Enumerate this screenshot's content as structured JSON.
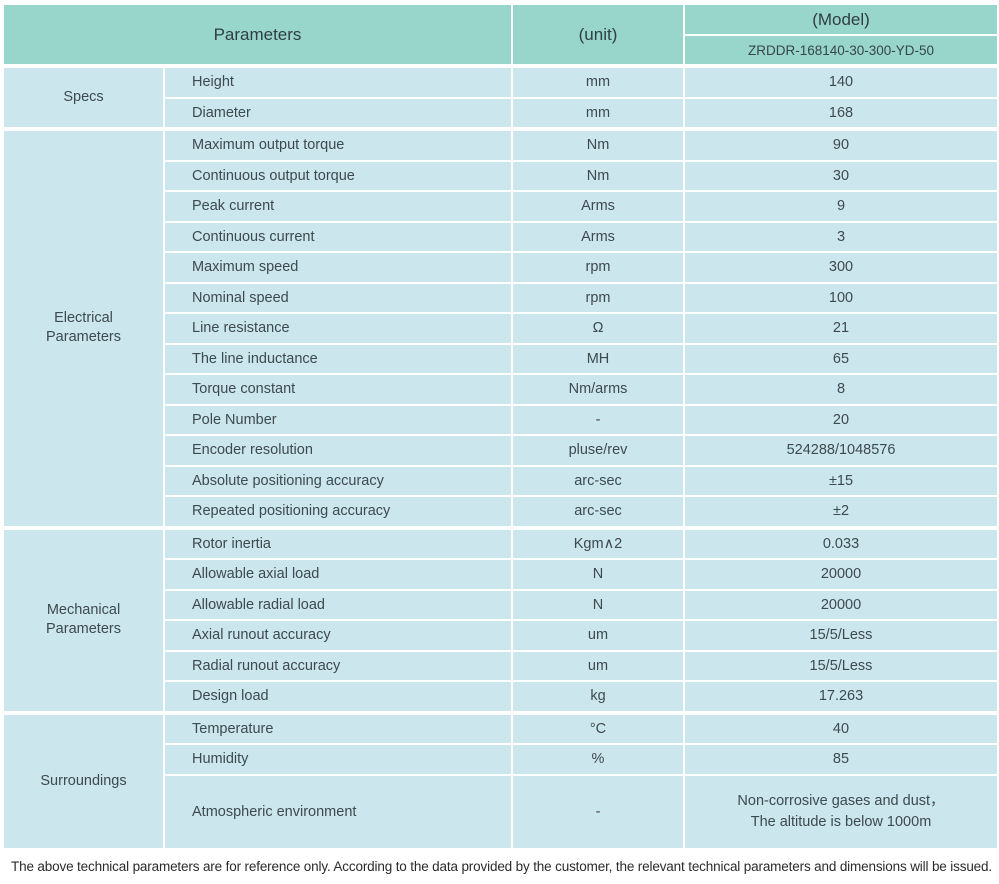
{
  "table": {
    "header": {
      "parameters_label": "Parameters",
      "unit_label": "(unit)",
      "model_label": "(Model)",
      "model_value": "ZRDDR-168140-30-300-YD-50"
    },
    "groups": [
      {
        "name": "Specs",
        "rows": [
          {
            "param": "Height",
            "unit": "mm",
            "value": "140"
          },
          {
            "param": "Diameter",
            "unit": "mm",
            "value": "168"
          }
        ]
      },
      {
        "name": "Electrical Parameters",
        "rows": [
          {
            "param": "Maximum output torque",
            "unit": "Nm",
            "value": "90"
          },
          {
            "param": "Continuous output torque",
            "unit": "Nm",
            "value": "30"
          },
          {
            "param": "Peak current",
            "unit": "Arms",
            "value": "9"
          },
          {
            "param": "Continuous current",
            "unit": "Arms",
            "value": "3"
          },
          {
            "param": "Maximum speed",
            "unit": "rpm",
            "value": "300"
          },
          {
            "param": "Nominal speed",
            "unit": "rpm",
            "value": "100"
          },
          {
            "param": "Line resistance",
            "unit": "Ω",
            "value": "21"
          },
          {
            "param": "The line inductance",
            "unit": "MH",
            "value": "65"
          },
          {
            "param": "Torque constant",
            "unit": "Nm/arms",
            "value": "8"
          },
          {
            "param": "Pole Number",
            "unit": "-",
            "value": "20"
          },
          {
            "param": "Encoder resolution",
            "unit": "pluse/rev",
            "value": "524288/1048576"
          },
          {
            "param": "Absolute positioning accuracy",
            "unit": "arc-sec",
            "value": "±15"
          },
          {
            "param": "Repeated positioning accuracy",
            "unit": "arc-sec",
            "value": "±2"
          }
        ]
      },
      {
        "name": "Mechanical Parameters",
        "rows": [
          {
            "param": "Rotor inertia",
            "unit": "Kgm∧2",
            "value": "0.033"
          },
          {
            "param": "Allowable axial load",
            "unit": "N",
            "value": "20000"
          },
          {
            "param": "Allowable radial load",
            "unit": "N",
            "value": "20000"
          },
          {
            "param": "Axial runout accuracy",
            "unit": "um",
            "value": "15/5/Less"
          },
          {
            "param": "Radial runout accuracy",
            "unit": "um",
            "value": "15/5/Less"
          },
          {
            "param": "Design load",
            "unit": "kg",
            "value": "17.263"
          }
        ]
      },
      {
        "name": "Surroundings",
        "rows": [
          {
            "param": "Temperature",
            "unit": "°C",
            "value": "40"
          },
          {
            "param": "Humidity",
            "unit": "%",
            "value": "85"
          },
          {
            "param": "Atmospheric environment",
            "unit": "-",
            "value": "Non-corrosive gases and dust，\nThe altitude is below 1000m",
            "tall": true
          }
        ]
      }
    ]
  },
  "footer_note": "The above technical parameters are for reference only. According to the data provided by the customer, the relevant technical parameters and dimensions will be issued.",
  "colors": {
    "header_bg": "#98d5cb",
    "row_bg": "#cbe6ed",
    "divider": "#ffffff",
    "body_text": "#3d4a4f",
    "header_text": "#2f3e43"
  }
}
